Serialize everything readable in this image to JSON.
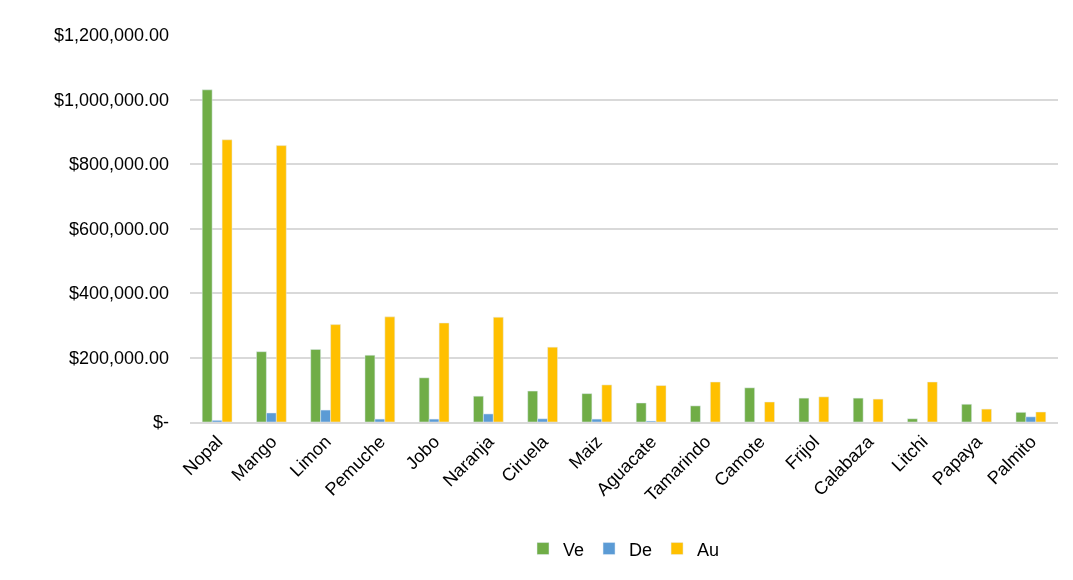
{
  "chart_data": {
    "type": "bar",
    "categories": [
      "Nopal",
      "Mango",
      "Limon",
      "Pemuche",
      "Jobo",
      "Naranja",
      "Ciruela",
      "Maiz",
      "Aguacate",
      "Tamarindo",
      "Camote",
      "Frijol",
      "Calabaza",
      "Litchi",
      "Papaya",
      "Palmito"
    ],
    "series": [
      {
        "name": "Ve",
        "color": "#70ad47",
        "values": [
          1030000,
          218000,
          225000,
          207000,
          137000,
          80000,
          96000,
          88000,
          59000,
          50000,
          106000,
          74000,
          74000,
          10000,
          55000,
          30000
        ]
      },
      {
        "name": "De",
        "color": "#5b9bd5",
        "values": [
          5000,
          28000,
          37000,
          9000,
          9000,
          25000,
          10000,
          9000,
          3000,
          null,
          null,
          null,
          null,
          null,
          null,
          16000
        ]
      },
      {
        "name": "Au",
        "color": "#ffc000",
        "values": [
          875000,
          857000,
          302000,
          326000,
          307000,
          325000,
          232000,
          115000,
          113000,
          124000,
          62000,
          78000,
          71000,
          124000,
          40000,
          31000
        ]
      }
    ],
    "ylim": [
      0,
      1200000
    ],
    "yticks": [
      {
        "value": 0,
        "label": "$-"
      },
      {
        "value": 200000,
        "label": "$200,000.00"
      },
      {
        "value": 400000,
        "label": "$400,000.00"
      },
      {
        "value": 600000,
        "label": "$600,000.00"
      },
      {
        "value": 800000,
        "label": "$800,000.00"
      },
      {
        "value": 1000000,
        "label": "$1,000,000.00"
      },
      {
        "value": 1200000,
        "label": "$1,200,000.00"
      }
    ],
    "grid": "y",
    "legend": "bottom"
  }
}
